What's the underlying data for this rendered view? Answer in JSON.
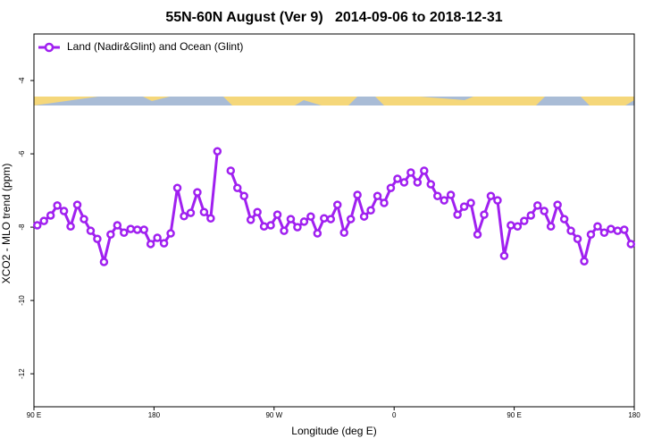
{
  "chart_data": {
    "type": "line",
    "title": "55N-60N August (Ver 9)   2014-09-06 to 2018-12-31",
    "xlabel": "Longitude (deg E)",
    "ylabel": "XCO2 - MLO trend (ppm)",
    "legend": "top-left",
    "xlim": [
      90,
      540
    ],
    "xticks": [
      {
        "value": 90,
        "label": "90 E"
      },
      {
        "value": 180,
        "label": "180"
      },
      {
        "value": 270,
        "label": "90 W"
      },
      {
        "value": 360,
        "label": "0"
      },
      {
        "value": 450,
        "label": "90 E"
      },
      {
        "value": 540,
        "label": "180"
      }
    ],
    "ylim": [
      -12.9,
      -2.73
    ],
    "yticks": [
      -4,
      -6,
      -8,
      -10,
      -12
    ],
    "x": [
      92.5,
      97.5,
      102.5,
      107.5,
      112.5,
      117.5,
      122.5,
      127.5,
      132.5,
      137.5,
      142.5,
      147.5,
      152.5,
      157.5,
      162.5,
      167.5,
      172.5,
      177.5,
      182.5,
      187.5,
      192.5,
      197.5,
      202.5,
      207.5,
      212.5,
      217.5,
      222.5,
      227.5,
      232.5,
      237.5,
      242.5,
      247.5,
      252.5,
      257.5,
      262.5,
      267.5,
      272.5,
      277.5,
      282.5,
      287.5,
      292.5,
      297.5,
      302.5,
      307.5,
      312.5,
      317.5,
      322.5,
      327.5,
      332.5,
      337.5,
      342.5,
      347.5,
      352.5,
      357.5,
      362.5,
      367.5,
      372.5,
      377.5,
      382.5,
      387.5,
      392.5,
      397.5,
      402.5,
      407.5,
      412.5,
      417.5,
      422.5,
      427.5,
      432.5,
      437.5,
      442.5,
      447.5,
      452.5,
      457.5,
      462.5,
      467.5,
      472.5,
      477.5,
      482.5,
      487.5,
      492.5,
      497.5,
      502.5,
      507.5,
      512.5,
      517.5,
      522.5,
      527.5,
      532.5,
      537.5
    ],
    "series": [
      {
        "name": "Land (Nadir&Glint) and Ocean (Glint)",
        "color": "#a020f0",
        "values": [
          -7.95,
          -7.83,
          -7.68,
          -7.41,
          -7.56,
          -7.98,
          -7.39,
          -7.78,
          -8.1,
          -8.32,
          -8.95,
          -8.2,
          -7.95,
          -8.15,
          -8.05,
          -8.07,
          -8.07,
          -8.46,
          -8.29,
          -8.44,
          -8.17,
          -6.93,
          -7.7,
          -7.61,
          -7.05,
          -7.59,
          -7.76,
          -5.93,
          null,
          -6.46,
          -6.93,
          -7.15,
          -7.8,
          -7.59,
          -7.98,
          -7.95,
          -7.66,
          -8.1,
          -7.78,
          -8.0,
          -7.85,
          -7.71,
          -8.17,
          -7.76,
          -7.78,
          -7.39,
          -8.15,
          -7.78,
          -7.12,
          -7.71,
          -7.54,
          -7.15,
          -7.34,
          -6.93,
          -6.68,
          -6.78,
          -6.51,
          -6.78,
          -6.46,
          -6.83,
          -7.15,
          -7.27,
          -7.12,
          -7.66,
          -7.44,
          -7.34,
          -8.2,
          -7.66,
          -7.15,
          -7.27,
          -8.78,
          -7.95,
          -7.98,
          -7.83,
          -7.68,
          -7.41,
          -7.56,
          -7.98,
          -7.39,
          -7.78,
          -8.1,
          -8.32,
          -8.93,
          -8.2,
          -7.98,
          -8.15,
          -8.05,
          -8.1,
          -8.07,
          -8.46
        ]
      }
    ]
  }
}
